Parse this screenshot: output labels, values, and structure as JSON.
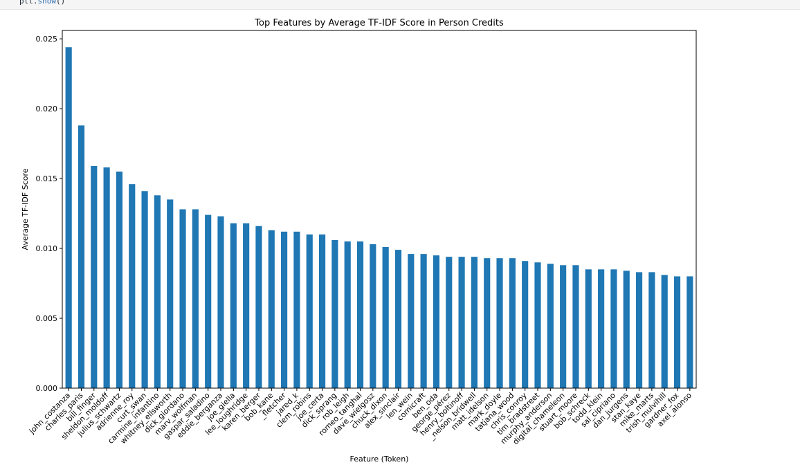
{
  "code_cell": {
    "obj": "plt",
    "method": "show",
    "suffix": "()"
  },
  "colors": {
    "bar": "#1f77b4",
    "axis": "#000000",
    "background": "#ffffff"
  },
  "chart_data": {
    "type": "bar",
    "title": "Top Features by Average TF-IDF Score in Person Credits",
    "xlabel": "Feature (Token)",
    "ylabel": "Average TF-IDF Score",
    "ylim": [
      0,
      0.0256
    ],
    "yticks": [
      "0.000",
      "0.005",
      "0.010",
      "0.015",
      "0.020",
      "0.025"
    ],
    "grid": false,
    "legend": "none",
    "categories": [
      "john_costanza",
      "charles_paris",
      "bill_finger",
      "sheldon_moldoff",
      "julius_schwartz",
      "adrienne_roy",
      "curt_swan",
      "carmine_infantino",
      "whitney_ellsworth",
      "dick_giordano",
      "marv_wolfman",
      "gaspar_saladino",
      "eddie_berganza",
      "joe_giella",
      "lee_loughridge",
      "karen_berger",
      "bob_kane",
      "_fletcher",
      "jared_k",
      "clem_robins",
      "joe_certa",
      "dick_sprang",
      "rob_leigh",
      "romeo_tanghal",
      "dave_wielgosz",
      "chuck_dixon",
      "alex_sinclair",
      "len_wein",
      "comicraft",
      "ben_oda",
      "george_pérez",
      "henry_boltinoff",
      "_nelson_bridwell",
      "matt_idelson",
      "mark_doyle",
      "tatjana_wood",
      "chris_conroy",
      "tim_bradstreet",
      "murphy_anderson",
      "digital_chameleon",
      "stuart_moore",
      "bob_schreck",
      "todd_klein",
      "sal_cipriano",
      "dan_jurgens",
      "stan_kaye",
      "mike_marts",
      "trish_mulvihill",
      "gardner_fox",
      "axel_alonso"
    ],
    "values": [
      0.0244,
      0.0188,
      0.0159,
      0.0158,
      0.0155,
      0.0146,
      0.0141,
      0.0138,
      0.0135,
      0.0128,
      0.0128,
      0.0124,
      0.0123,
      0.0118,
      0.0118,
      0.0116,
      0.0113,
      0.0112,
      0.0112,
      0.011,
      0.011,
      0.0106,
      0.0105,
      0.0105,
      0.0103,
      0.0101,
      0.0099,
      0.0096,
      0.0096,
      0.0095,
      0.0094,
      0.0094,
      0.0094,
      0.0093,
      0.0093,
      0.0093,
      0.0091,
      0.009,
      0.0089,
      0.0088,
      0.0088,
      0.0085,
      0.0085,
      0.0085,
      0.0084,
      0.0083,
      0.0083,
      0.0081,
      0.008,
      0.008
    ]
  }
}
